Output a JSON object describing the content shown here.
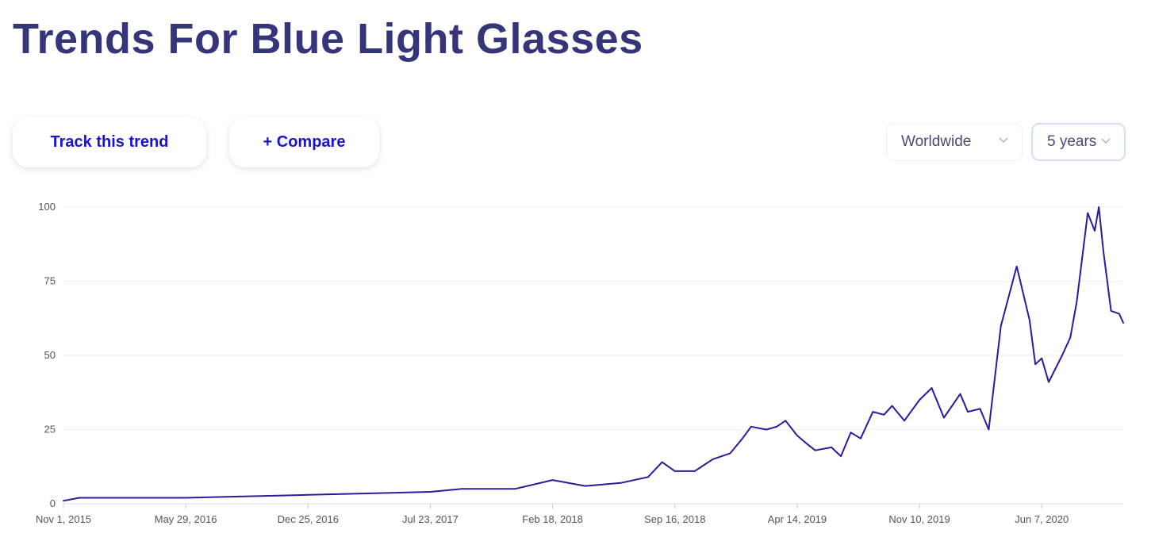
{
  "header": {
    "title": "Trends For Blue Light Glasses"
  },
  "buttons": [
    "Track this trend",
    "+ Compare"
  ],
  "dropdowns": [
    "Worldwide",
    "5 years"
  ],
  "chart_data": {
    "type": "line",
    "x": [
      "2015-11-01",
      "2015-11-28",
      "2016-05-29",
      "2016-12-25",
      "2017-07-23",
      "2017-09-15",
      "2017-12-15",
      "2018-02-18",
      "2018-04-15",
      "2018-06-15",
      "2018-08-01",
      "2018-08-25",
      "2018-09-16",
      "2018-10-20",
      "2018-11-20",
      "2018-12-20",
      "2019-01-10",
      "2019-01-25",
      "2019-02-20",
      "2019-03-10",
      "2019-03-25",
      "2019-04-14",
      "2019-05-02",
      "2019-05-15",
      "2019-06-12",
      "2019-06-28",
      "2019-07-15",
      "2019-08-01",
      "2019-08-22",
      "2019-09-10",
      "2019-09-24",
      "2019-10-15",
      "2019-11-10",
      "2019-12-01",
      "2019-12-22",
      "2020-01-19",
      "2020-02-01",
      "2020-02-22",
      "2020-03-08",
      "2020-03-29",
      "2020-04-25",
      "2020-05-17",
      "2020-05-27",
      "2020-06-07",
      "2020-06-19",
      "2020-07-12",
      "2020-07-26",
      "2020-08-06",
      "2020-08-25",
      "2020-09-06",
      "2020-09-13",
      "2020-09-21",
      "2020-10-04",
      "2020-10-18",
      "2020-10-25"
    ],
    "series": [
      {
        "name": "Blue Light Glasses",
        "color": "#2a1a9c",
        "values": [
          1,
          2,
          2,
          3,
          4,
          5,
          5,
          8,
          6,
          7,
          9,
          14,
          11,
          11,
          15,
          17,
          22,
          26,
          25,
          26,
          28,
          23,
          20,
          18,
          19,
          16,
          24,
          22,
          31,
          30,
          33,
          28,
          35,
          39,
          29,
          37,
          31,
          32,
          25,
          60,
          80,
          62,
          47,
          49,
          41,
          50,
          56,
          68,
          98,
          92,
          100,
          85,
          65,
          64,
          61
        ]
      }
    ],
    "xlim": [
      "2015-11-01",
      "2020-10-25"
    ],
    "xticks": [
      {
        "value": "2015-11-01",
        "label": "Nov 1, 2015"
      },
      {
        "value": "2016-05-29",
        "label": "May 29, 2016"
      },
      {
        "value": "2016-12-25",
        "label": "Dec 25, 2016"
      },
      {
        "value": "2017-07-23",
        "label": "Jul 23, 2017"
      },
      {
        "value": "2018-02-18",
        "label": "Feb 18, 2018"
      },
      {
        "value": "2018-09-16",
        "label": "Sep 16, 2018"
      },
      {
        "value": "2019-04-14",
        "label": "Apr 14, 2019"
      },
      {
        "value": "2019-11-10",
        "label": "Nov 10, 2019"
      },
      {
        "value": "2020-06-07",
        "label": "Jun 7, 2020"
      }
    ],
    "ylim": [
      0,
      100
    ],
    "yticks": [
      0,
      25,
      50,
      75,
      100
    ],
    "grid": true
  }
}
